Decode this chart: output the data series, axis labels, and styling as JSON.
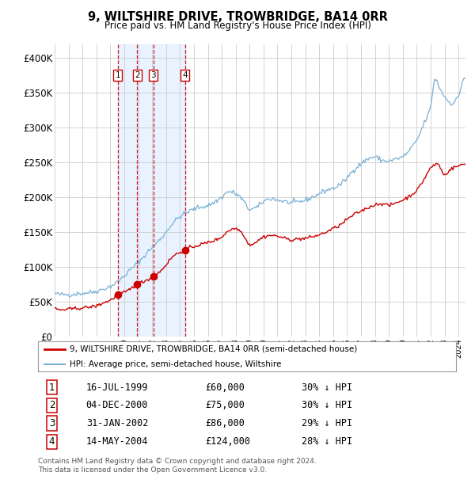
{
  "title": "9, WILTSHIRE DRIVE, TROWBRIDGE, BA14 0RR",
  "subtitle": "Price paid vs. HM Land Registry's House Price Index (HPI)",
  "legend_line1": "9, WILTSHIRE DRIVE, TROWBRIDGE, BA14 0RR (semi-detached house)",
  "legend_line2": "HPI: Average price, semi-detached house, Wiltshire",
  "footer_line1": "Contains HM Land Registry data © Crown copyright and database right 2024.",
  "footer_line2": "This data is licensed under the Open Government Licence v3.0.",
  "sale_color": "#cc0000",
  "hpi_color": "#7ab0d4",
  "background_color": "#ffffff",
  "grid_color": "#cccccc",
  "transactions": [
    {
      "label": "1",
      "date": "16-JUL-1999",
      "price": 60000,
      "pct": "30% ↓ HPI",
      "x_year": 1999.54
    },
    {
      "label": "2",
      "date": "04-DEC-2000",
      "price": 75000,
      "pct": "30% ↓ HPI",
      "x_year": 2000.92
    },
    {
      "label": "3",
      "date": "31-JAN-2002",
      "price": 86000,
      "pct": "29% ↓ HPI",
      "x_year": 2002.08
    },
    {
      "label": "4",
      "date": "14-MAY-2004",
      "price": 124000,
      "pct": "28% ↓ HPI",
      "x_year": 2004.37
    }
  ],
  "shade_start": 1999.54,
  "shade_end": 2004.37,
  "ylim": [
    0,
    420000
  ],
  "xlim_start": 1995,
  "xlim_end": 2024.5,
  "yticks": [
    0,
    50000,
    100000,
    150000,
    200000,
    250000,
    300000,
    350000,
    400000
  ],
  "ytick_labels": [
    "£0",
    "£50K",
    "£100K",
    "£150K",
    "£200K",
    "£250K",
    "£300K",
    "£350K",
    "£400K"
  ],
  "hpi_anchors": [
    [
      1995.0,
      62000
    ],
    [
      1995.5,
      60000
    ],
    [
      1996.0,
      60000
    ],
    [
      1996.5,
      61000
    ],
    [
      1997.0,
      62000
    ],
    [
      1997.5,
      63000
    ],
    [
      1998.0,
      65000
    ],
    [
      1998.5,
      68000
    ],
    [
      1999.0,
      72000
    ],
    [
      1999.5,
      78000
    ],
    [
      2000.0,
      87000
    ],
    [
      2000.5,
      97000
    ],
    [
      2001.0,
      106000
    ],
    [
      2001.5,
      117000
    ],
    [
      2002.0,
      128000
    ],
    [
      2002.5,
      138000
    ],
    [
      2003.0,
      150000
    ],
    [
      2003.5,
      163000
    ],
    [
      2004.0,
      172000
    ],
    [
      2004.5,
      178000
    ],
    [
      2005.0,
      183000
    ],
    [
      2005.5,
      186000
    ],
    [
      2006.0,
      188000
    ],
    [
      2006.5,
      193000
    ],
    [
      2007.0,
      200000
    ],
    [
      2007.5,
      208000
    ],
    [
      2008.0,
      205000
    ],
    [
      2008.5,
      196000
    ],
    [
      2009.0,
      183000
    ],
    [
      2009.5,
      185000
    ],
    [
      2010.0,
      194000
    ],
    [
      2010.5,
      198000
    ],
    [
      2011.0,
      196000
    ],
    [
      2011.5,
      194000
    ],
    [
      2012.0,
      192000
    ],
    [
      2012.5,
      193000
    ],
    [
      2013.0,
      196000
    ],
    [
      2013.5,
      200000
    ],
    [
      2014.0,
      205000
    ],
    [
      2014.5,
      210000
    ],
    [
      2015.0,
      213000
    ],
    [
      2015.5,
      218000
    ],
    [
      2016.0,
      228000
    ],
    [
      2016.5,
      240000
    ],
    [
      2017.0,
      248000
    ],
    [
      2017.5,
      255000
    ],
    [
      2018.0,
      258000
    ],
    [
      2018.5,
      253000
    ],
    [
      2019.0,
      252000
    ],
    [
      2019.5,
      255000
    ],
    [
      2020.0,
      258000
    ],
    [
      2020.5,
      268000
    ],
    [
      2021.0,
      282000
    ],
    [
      2021.5,
      305000
    ],
    [
      2022.0,
      330000
    ],
    [
      2022.3,
      370000
    ],
    [
      2022.7,
      355000
    ],
    [
      2023.0,
      345000
    ],
    [
      2023.5,
      335000
    ],
    [
      2024.0,
      345000
    ],
    [
      2024.3,
      368000
    ],
    [
      2024.5,
      372000
    ]
  ],
  "sale_anchors": [
    [
      1995.0,
      40000
    ],
    [
      1995.5,
      38000
    ],
    [
      1996.0,
      39000
    ],
    [
      1996.5,
      40000
    ],
    [
      1997.0,
      41000
    ],
    [
      1997.5,
      42000
    ],
    [
      1998.0,
      44000
    ],
    [
      1998.5,
      48000
    ],
    [
      1999.0,
      52000
    ],
    [
      1999.54,
      60000
    ],
    [
      2000.0,
      63000
    ],
    [
      2000.92,
      75000
    ],
    [
      2001.0,
      76000
    ],
    [
      2001.5,
      80000
    ],
    [
      2002.08,
      86000
    ],
    [
      2002.5,
      92000
    ],
    [
      2003.0,
      103000
    ],
    [
      2003.5,
      115000
    ],
    [
      2004.0,
      121000
    ],
    [
      2004.37,
      124000
    ],
    [
      2004.8,
      128000
    ],
    [
      2005.5,
      132000
    ],
    [
      2006.0,
      135000
    ],
    [
      2006.5,
      138000
    ],
    [
      2007.0,
      143000
    ],
    [
      2007.5,
      152000
    ],
    [
      2008.0,
      155000
    ],
    [
      2008.5,
      148000
    ],
    [
      2009.0,
      132000
    ],
    [
      2009.5,
      136000
    ],
    [
      2010.0,
      143000
    ],
    [
      2010.5,
      145000
    ],
    [
      2011.0,
      144000
    ],
    [
      2011.5,
      141000
    ],
    [
      2012.0,
      139000
    ],
    [
      2012.5,
      140000
    ],
    [
      2013.0,
      141000
    ],
    [
      2013.5,
      143000
    ],
    [
      2014.0,
      146000
    ],
    [
      2014.5,
      150000
    ],
    [
      2015.0,
      155000
    ],
    [
      2015.5,
      160000
    ],
    [
      2016.0,
      168000
    ],
    [
      2016.5,
      175000
    ],
    [
      2017.0,
      180000
    ],
    [
      2017.5,
      185000
    ],
    [
      2018.0,
      189000
    ],
    [
      2018.5,
      191000
    ],
    [
      2019.0,
      188000
    ],
    [
      2019.5,
      192000
    ],
    [
      2020.0,
      196000
    ],
    [
      2020.5,
      202000
    ],
    [
      2021.0,
      210000
    ],
    [
      2021.5,
      225000
    ],
    [
      2022.0,
      242000
    ],
    [
      2022.5,
      248000
    ],
    [
      2023.0,
      232000
    ],
    [
      2023.3,
      238000
    ],
    [
      2023.7,
      243000
    ],
    [
      2024.0,
      245000
    ],
    [
      2024.3,
      247000
    ],
    [
      2024.5,
      248000
    ]
  ]
}
